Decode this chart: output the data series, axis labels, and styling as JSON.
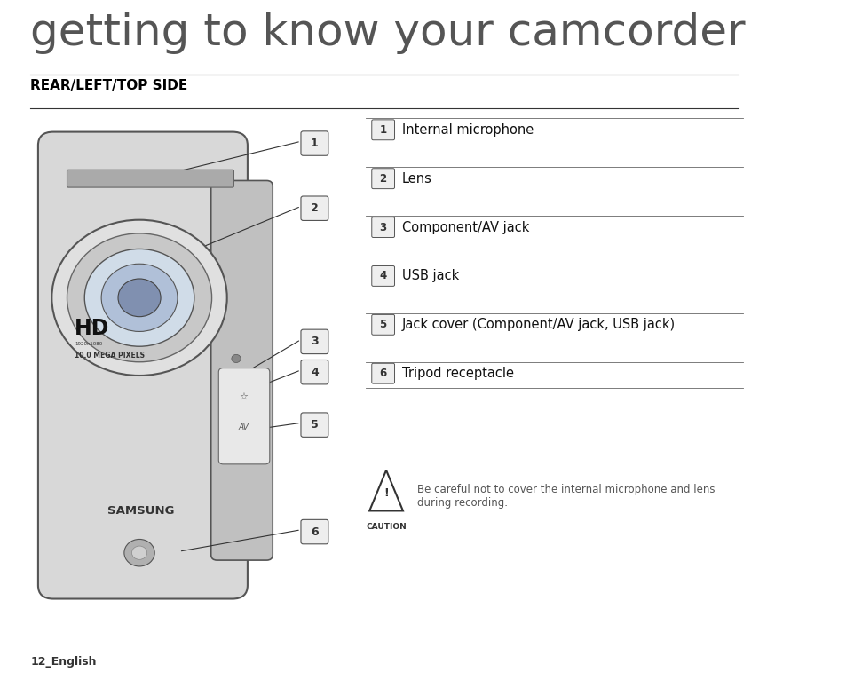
{
  "title": "getting to know your camcorder",
  "section_header": "REAR/LEFT/TOP SIDE",
  "page_label": "12_English",
  "bg_color": "#ffffff",
  "title_color": "#555555",
  "header_color": "#000000",
  "items": [
    {
      "num": "1",
      "label": "Internal microphone"
    },
    {
      "num": "2",
      "label": "Lens"
    },
    {
      "num": "3",
      "label": "Component/AV jack"
    },
    {
      "num": "4",
      "label": "USB jack"
    },
    {
      "num": "5",
      "label": "Jack cover (Component/AV jack, USB jack)"
    },
    {
      "num": "6",
      "label": "Tripod receptacle"
    }
  ],
  "caution_text": "Be careful not to cover the internal microphone and lens\nduring recording.",
  "caution_label": "CAUTION"
}
